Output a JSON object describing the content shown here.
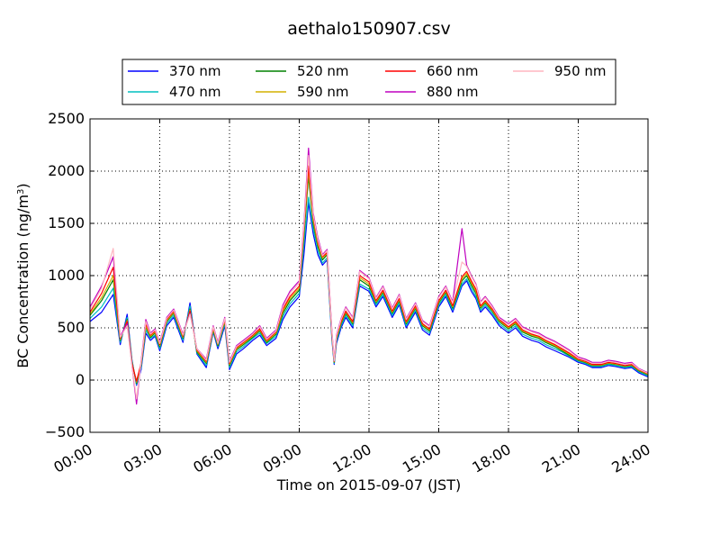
{
  "chart_data": {
    "type": "line",
    "title": "aethalo150907.csv",
    "xlabel": "Time on 2015-09-07 (JST)",
    "ylabel": "BC Concentration (ng/m³)",
    "ylabel_main": "BC Concentration (ng/m",
    "ylabel_sup": "3",
    "ylabel_tail": ")",
    "xlim": [
      0,
      24
    ],
    "ylim": [
      -500,
      2500
    ],
    "x_ticks": [
      0,
      3,
      6,
      9,
      12,
      15,
      18,
      21,
      24
    ],
    "x_tick_labels": [
      "00:00",
      "03:00",
      "06:00",
      "09:00",
      "12:00",
      "15:00",
      "18:00",
      "21:00",
      "24:00"
    ],
    "y_ticks": [
      -500,
      0,
      500,
      1000,
      1500,
      2000,
      2500
    ],
    "y_tick_labels": [
      "−500",
      "0",
      "500",
      "1000",
      "1500",
      "2000",
      "2500"
    ],
    "grid": true,
    "legend_position": "top-center-outside",
    "x": [
      0,
      0.5,
      1,
      1.3,
      1.6,
      1.8,
      2,
      2.2,
      2.4,
      2.6,
      2.8,
      3,
      3.3,
      3.6,
      4,
      4.3,
      4.6,
      5,
      5.3,
      5.5,
      5.8,
      6,
      6.3,
      6.6,
      7,
      7.3,
      7.6,
      8,
      8.3,
      8.6,
      9,
      9.2,
      9.4,
      9.6,
      9.8,
      10,
      10.2,
      10.4,
      10.5,
      10.6,
      10.8,
      11,
      11.3,
      11.6,
      12,
      12.3,
      12.6,
      13,
      13.3,
      13.6,
      14,
      14.3,
      14.6,
      15,
      15.3,
      15.6,
      16,
      16.2,
      16.4,
      16.6,
      16.8,
      17,
      17.3,
      17.6,
      18,
      18.3,
      18.6,
      19,
      19.3,
      19.6,
      20,
      20.3,
      20.6,
      21,
      21.3,
      21.6,
      22,
      22.3,
      22.6,
      23,
      23.3,
      23.6,
      24
    ],
    "series": [
      {
        "name": "370 nm",
        "color": "#0000ff",
        "values": [
          560,
          650,
          820,
          340,
          630,
          200,
          -50,
          100,
          450,
          380,
          420,
          280,
          520,
          600,
          360,
          740,
          250,
          120,
          460,
          300,
          520,
          100,
          250,
          300,
          380,
          430,
          330,
          400,
          580,
          700,
          800,
          1200,
          1700,
          1400,
          1200,
          1100,
          1150,
          400,
          150,
          350,
          500,
          600,
          500,
          900,
          850,
          700,
          800,
          600,
          720,
          500,
          650,
          480,
          430,
          700,
          800,
          650,
          900,
          950,
          850,
          780,
          650,
          700,
          620,
          520,
          450,
          500,
          420,
          380,
          360,
          320,
          280,
          250,
          220,
          170,
          150,
          120,
          120,
          140,
          130,
          110,
          120,
          70,
          30
        ]
      },
      {
        "name": "470 nm",
        "color": "#00bfbf",
        "values": [
          590,
          700,
          880,
          360,
          600,
          190,
          -40,
          120,
          480,
          400,
          430,
          300,
          540,
          620,
          380,
          710,
          260,
          140,
          470,
          320,
          540,
          120,
          270,
          320,
          400,
          450,
          350,
          420,
          610,
          730,
          830,
          1300,
          1750,
          1450,
          1240,
          1120,
          1170,
          420,
          160,
          370,
          520,
          620,
          520,
          920,
          870,
          720,
          820,
          620,
          740,
          520,
          670,
          500,
          450,
          720,
          820,
          670,
          920,
          970,
          880,
          800,
          670,
          720,
          640,
          540,
          470,
          520,
          440,
          400,
          380,
          340,
          300,
          270,
          230,
          180,
          160,
          130,
          130,
          150,
          140,
          120,
          130,
          80,
          40
        ]
      },
      {
        "name": "520 nm",
        "color": "#008000",
        "values": [
          620,
          760,
          960,
          380,
          580,
          180,
          -30,
          140,
          510,
          410,
          450,
          320,
          560,
          640,
          400,
          680,
          270,
          160,
          480,
          330,
          560,
          140,
          290,
          340,
          410,
          470,
          360,
          440,
          640,
          760,
          860,
          1380,
          1950,
          1500,
          1280,
          1150,
          1200,
          440,
          170,
          390,
          540,
          640,
          540,
          960,
          900,
          740,
          840,
          640,
          760,
          540,
          690,
          520,
          470,
          740,
          840,
          690,
          950,
          1000,
          910,
          830,
          690,
          740,
          660,
          560,
          490,
          540,
          460,
          420,
          400,
          360,
          320,
          280,
          240,
          190,
          170,
          140,
          140,
          160,
          150,
          130,
          140,
          90,
          50
        ]
      },
      {
        "name": "590 nm",
        "color": "#d4b000",
        "values": [
          630,
          790,
          1000,
          390,
          570,
          170,
          -20,
          150,
          520,
          420,
          460,
          330,
          570,
          650,
          410,
          670,
          280,
          170,
          490,
          340,
          570,
          150,
          300,
          350,
          420,
          480,
          370,
          450,
          660,
          780,
          880,
          1420,
          2000,
          1530,
          1300,
          1170,
          1210,
          450,
          175,
          400,
          550,
          650,
          550,
          980,
          920,
          750,
          850,
          650,
          770,
          550,
          700,
          530,
          480,
          750,
          850,
          700,
          970,
          1020,
          930,
          850,
          700,
          750,
          670,
          570,
          500,
          550,
          470,
          430,
          410,
          370,
          330,
          290,
          250,
          195,
          175,
          145,
          145,
          165,
          155,
          135,
          145,
          95,
          55
        ]
      },
      {
        "name": "660 nm",
        "color": "#ff0000",
        "values": [
          650,
          830,
          1080,
          400,
          560,
          160,
          -10,
          160,
          540,
          430,
          470,
          340,
          580,
          660,
          420,
          660,
          290,
          180,
          500,
          350,
          580,
          160,
          310,
          360,
          430,
          490,
          380,
          460,
          680,
          800,
          900,
          1450,
          2050,
          1560,
          1320,
          1180,
          1220,
          460,
          180,
          410,
          560,
          660,
          560,
          1000,
          940,
          760,
          860,
          660,
          780,
          560,
          710,
          540,
          490,
          760,
          860,
          710,
          990,
          1040,
          950,
          870,
          710,
          760,
          680,
          580,
          510,
          560,
          480,
          440,
          420,
          380,
          340,
          300,
          260,
          200,
          180,
          150,
          150,
          170,
          160,
          140,
          150,
          100,
          60
        ]
      },
      {
        "name": "880 nm",
        "color": "#bf00bf",
        "values": [
          700,
          900,
          1180,
          420,
          540,
          150,
          -230,
          180,
          580,
          450,
          490,
          360,
          600,
          680,
          440,
          640,
          300,
          200,
          520,
          360,
          600,
          180,
          330,
          380,
          450,
          520,
          400,
          480,
          720,
          850,
          950,
          1500,
          2220,
          1600,
          1360,
          1200,
          1250,
          480,
          190,
          430,
          590,
          700,
          600,
          1050,
          980,
          790,
          900,
          690,
          820,
          590,
          740,
          570,
          520,
          800,
          900,
          750,
          1450,
          1100,
          1000,
          920,
          750,
          800,
          710,
          600,
          540,
          590,
          510,
          470,
          450,
          410,
          370,
          330,
          290,
          220,
          200,
          170,
          170,
          190,
          180,
          160,
          170,
          110,
          70
        ]
      },
      {
        "name": "950 nm",
        "color": "#ffb6c1",
        "values": [
          680,
          880,
          1260,
          410,
          520,
          140,
          -180,
          170,
          560,
          440,
          480,
          350,
          590,
          670,
          430,
          630,
          300,
          190,
          510,
          350,
          590,
          170,
          320,
          370,
          440,
          510,
          390,
          470,
          700,
          830,
          930,
          1480,
          2150,
          1580,
          1340,
          1190,
          1240,
          470,
          185,
          420,
          580,
          690,
          590,
          1040,
          970,
          780,
          890,
          680,
          810,
          580,
          730,
          560,
          510,
          790,
          890,
          740,
          1130,
          1090,
          990,
          910,
          740,
          790,
          700,
          590,
          530,
          580,
          500,
          460,
          440,
          400,
          360,
          320,
          280,
          210,
          190,
          160,
          160,
          180,
          170,
          150,
          160,
          105,
          65
        ]
      }
    ]
  }
}
